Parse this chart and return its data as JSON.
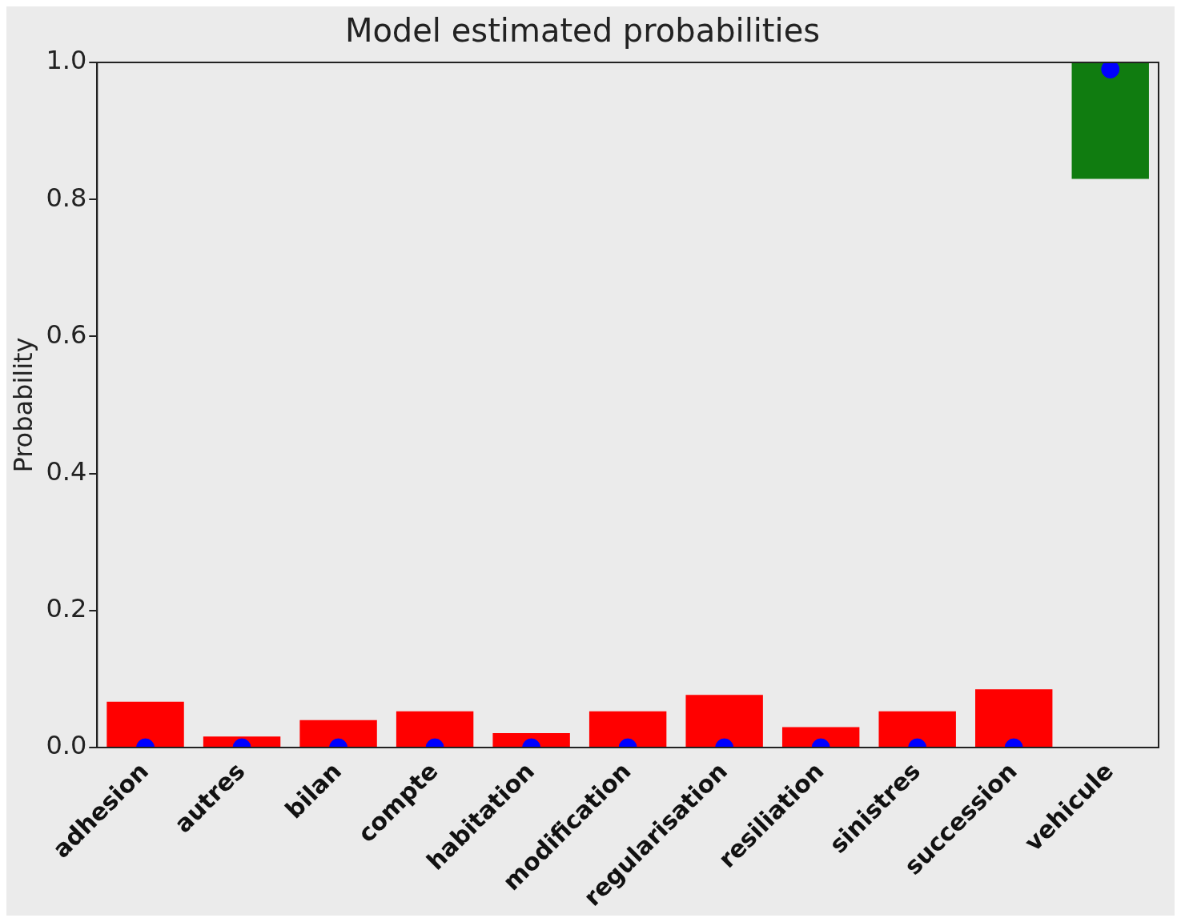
{
  "chart_data": {
    "type": "bar",
    "title": "Model estimated probabilities",
    "ylabel": "Probability",
    "categories": [
      "adhesion",
      "autres",
      "bilan",
      "compte",
      "habitation",
      "modification",
      "regularisation",
      "resiliation",
      "sinistres",
      "succession",
      "vehicule"
    ],
    "series": [
      {
        "values": [
          0.067,
          0.016,
          0.04,
          0.053,
          0.021,
          0.053,
          0.077,
          0.03,
          0.053,
          0.085,
          0.17
        ],
        "base": [
          0,
          0,
          0,
          0,
          0,
          0,
          0,
          0,
          0,
          0,
          0.83
        ],
        "colors": [
          "#ff0000",
          "#ff0000",
          "#ff0000",
          "#ff0000",
          "#ff0000",
          "#ff0000",
          "#ff0000",
          "#ff0000",
          "#ff0000",
          "#ff0000",
          "#107c10"
        ]
      },
      {
        "type": "scatter",
        "color": "#0000ff",
        "marker": "circle",
        "x": [
          "adhesion",
          "autres",
          "bilan",
          "compte",
          "habitation",
          "modification",
          "regularisation",
          "resiliation",
          "sinistres",
          "succession",
          "vehicule"
        ],
        "values": [
          0,
          0,
          0,
          0,
          0,
          0,
          0,
          0,
          0,
          0,
          0.99
        ]
      }
    ],
    "ylim": [
      0,
      1
    ],
    "yticks": [
      {
        "value": 0,
        "label": "0.0"
      },
      0.2,
      0.4,
      0.6,
      0.8,
      {
        "value": 1,
        "label": "1.0"
      }
    ],
    "grid": false,
    "legend": false
  }
}
